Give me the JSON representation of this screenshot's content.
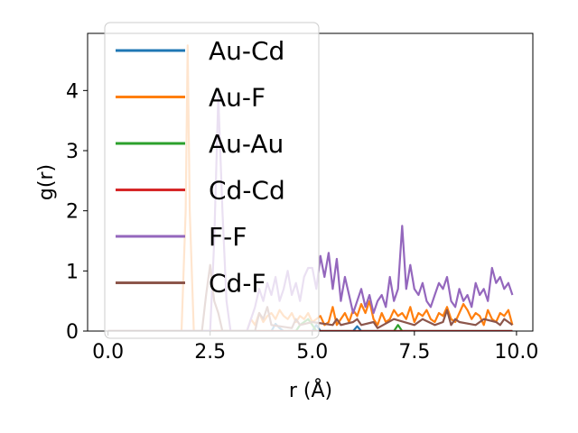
{
  "chart_data": {
    "type": "line",
    "xlabel": "r (Å)",
    "ylabel": "g(r)",
    "xlim": [
      -0.5,
      10.4
    ],
    "ylim": [
      0,
      4.95
    ],
    "xticks": [
      "0.0",
      "2.5",
      "5.0",
      "7.5",
      "10.0"
    ],
    "xtick_values": [
      0,
      2.5,
      5,
      7.5,
      10
    ],
    "yticks": [
      "0",
      "1",
      "2",
      "3",
      "4"
    ],
    "ytick_values": [
      0,
      1,
      2,
      3,
      4
    ],
    "grid": false,
    "legend_position": "upper-left",
    "series": [
      {
        "name": "Au-Cd",
        "color": "#1f77b4",
        "x": [
          0,
          4.0,
          4.1,
          4.2,
          4.3,
          5.0,
          5.1,
          5.2,
          6.0,
          6.1,
          6.2,
          9.9
        ],
        "y": [
          0,
          0,
          0.12,
          0.05,
          0,
          0,
          0.1,
          0,
          0,
          0.08,
          0,
          0
        ]
      },
      {
        "name": "Au-F",
        "color": "#ff7f0e",
        "x": [
          0,
          1.8,
          1.9,
          1.95,
          2.0,
          2.1,
          3.4,
          3.5,
          3.6,
          3.7,
          3.8,
          3.9,
          4.0,
          4.1,
          4.2,
          4.3,
          4.4,
          4.5,
          4.6,
          4.7,
          4.8,
          4.9,
          5.0,
          5.1,
          5.2,
          5.3,
          5.4,
          5.5,
          5.6,
          5.7,
          5.8,
          5.9,
          6.0,
          6.1,
          6.2,
          6.3,
          6.4,
          6.5,
          6.6,
          6.7,
          6.8,
          6.9,
          7.0,
          7.1,
          7.2,
          7.3,
          7.4,
          7.5,
          7.6,
          7.7,
          7.8,
          7.9,
          8.0,
          8.1,
          8.2,
          8.3,
          8.4,
          8.5,
          8.6,
          8.7,
          8.8,
          8.9,
          9.0,
          9.1,
          9.2,
          9.3,
          9.4,
          9.5,
          9.6,
          9.7,
          9.8,
          9.9
        ],
        "y": [
          0,
          0,
          2.0,
          4.75,
          2.0,
          0,
          0,
          0.2,
          0.1,
          0.3,
          0.15,
          0.25,
          0.3,
          0.2,
          0.35,
          0.25,
          0.2,
          0.3,
          0.15,
          0.25,
          0.2,
          0.3,
          0.15,
          0.2,
          0.25,
          0.1,
          0.15,
          0.4,
          0.1,
          0.2,
          0.3,
          0.15,
          0.35,
          0.25,
          0.45,
          0.3,
          0.5,
          0.2,
          0.1,
          0.3,
          0.15,
          0.2,
          0.35,
          0.25,
          0.3,
          0.2,
          0.4,
          0.15,
          0.3,
          0.25,
          0.35,
          0.2,
          0.15,
          0.3,
          0.25,
          0.4,
          0.2,
          0.15,
          0.3,
          0.45,
          0.35,
          0.2,
          0.3,
          0.25,
          0.1,
          0.35,
          0.2,
          0.15,
          0.3,
          0.25,
          0.35,
          0.1
        ]
      },
      {
        "name": "Au-Au",
        "color": "#2ca02c",
        "x": [
          0,
          4.6,
          4.7,
          4.8,
          4.9,
          5.0,
          5.1,
          7.0,
          7.1,
          7.2,
          9.9
        ],
        "y": [
          0,
          0,
          0.1,
          0.15,
          0.2,
          0.1,
          0,
          0,
          0.1,
          0,
          0
        ]
      },
      {
        "name": "Cd-Cd",
        "color": "#d62728",
        "x": [
          0,
          9.9
        ],
        "y": [
          0,
          0
        ]
      },
      {
        "name": "F-F",
        "color": "#9467bd",
        "x": [
          0,
          2.5,
          2.6,
          2.7,
          2.8,
          2.9,
          3.0,
          3.4,
          3.5,
          3.6,
          3.7,
          3.8,
          3.9,
          4.0,
          4.1,
          4.2,
          4.3,
          4.4,
          4.5,
          4.6,
          4.7,
          4.8,
          4.9,
          5.0,
          5.1,
          5.2,
          5.3,
          5.4,
          5.5,
          5.6,
          5.7,
          5.8,
          5.9,
          6.0,
          6.1,
          6.2,
          6.3,
          6.4,
          6.5,
          6.6,
          6.7,
          6.8,
          6.9,
          7.0,
          7.1,
          7.2,
          7.3,
          7.4,
          7.5,
          7.6,
          7.7,
          7.8,
          7.9,
          8.0,
          8.1,
          8.2,
          8.3,
          8.4,
          8.5,
          8.6,
          8.7,
          8.8,
          8.9,
          9.0,
          9.1,
          9.2,
          9.3,
          9.4,
          9.5,
          9.6,
          9.7,
          9.8,
          9.9
        ],
        "y": [
          0,
          0,
          1.5,
          3.9,
          2.0,
          0.5,
          0,
          0,
          0.2,
          0.4,
          0.7,
          0.5,
          0.8,
          0.6,
          0.9,
          0.5,
          0.7,
          1.0,
          0.6,
          0.8,
          0.5,
          0.9,
          1.05,
          1.05,
          0.7,
          1.25,
          0.9,
          1.3,
          0.7,
          1.2,
          0.5,
          0.9,
          0.6,
          0.3,
          0.5,
          0.7,
          0.4,
          0.6,
          0.3,
          0.5,
          0.6,
          0.4,
          0.9,
          0.5,
          0.7,
          1.75,
          0.7,
          1.1,
          0.7,
          0.6,
          0.8,
          0.5,
          0.4,
          0.6,
          0.8,
          0.7,
          0.9,
          0.5,
          0.4,
          0.7,
          0.5,
          0.6,
          0.4,
          0.8,
          0.6,
          0.7,
          0.5,
          1.05,
          0.8,
          0.9,
          0.7,
          0.8,
          0.6
        ]
      },
      {
        "name": "Cd-F",
        "color": "#8c564b",
        "x": [
          0,
          2.3,
          2.4,
          2.5,
          2.6,
          2.7,
          2.8,
          3.6,
          3.7,
          3.8,
          3.9,
          4.0,
          4.5,
          4.6,
          4.7,
          5.0,
          5.5,
          5.6,
          5.7,
          6.0,
          6.1,
          6.2,
          6.5,
          6.6,
          7.0,
          7.5,
          7.6,
          7.7,
          8.0,
          8.2,
          8.3,
          8.4,
          8.5,
          8.6,
          9.0,
          9.2,
          9.5,
          9.6,
          9.7,
          9.8,
          9.9
        ],
        "y": [
          0,
          0,
          0.6,
          1.1,
          0.5,
          0.3,
          0,
          0,
          0.3,
          0.2,
          0.4,
          0.1,
          0.05,
          0.2,
          0.1,
          0.15,
          0.1,
          0.2,
          0.1,
          0.15,
          0.2,
          0.1,
          0.15,
          0.05,
          0.2,
          0.1,
          0.15,
          0.2,
          0.1,
          0.15,
          0.35,
          0.1,
          0.2,
          0.15,
          0.1,
          0.2,
          0.15,
          0.1,
          0.2,
          0.15,
          0.1
        ]
      }
    ]
  }
}
